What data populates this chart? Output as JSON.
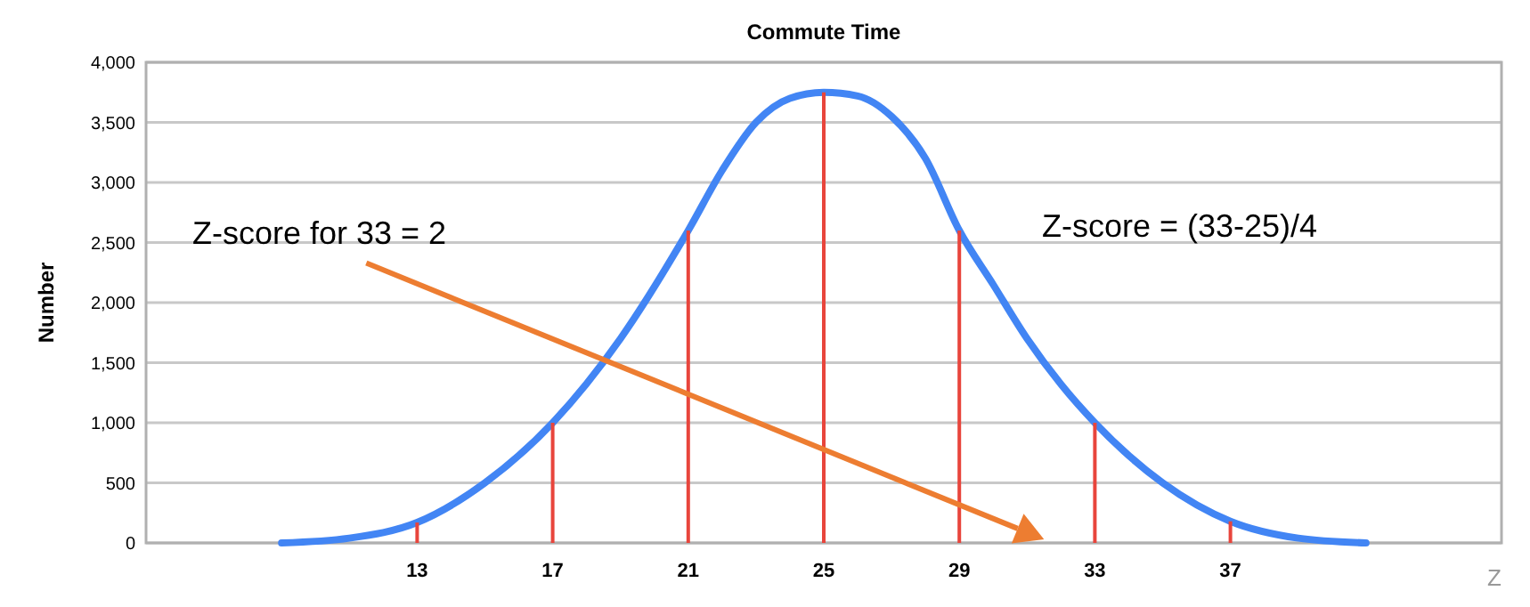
{
  "chart_data": {
    "type": "line",
    "title": "Commute Time",
    "xlabel": "Z",
    "ylabel": "Number",
    "xlim": [
      5,
      45
    ],
    "xticks": [
      13,
      17,
      21,
      25,
      29,
      33,
      37
    ],
    "ylim": [
      0,
      4000
    ],
    "yticks": [
      {
        "value": 0,
        "label": "0"
      },
      {
        "value": 500,
        "label": "500"
      },
      {
        "value": 1000,
        "label": "1,000"
      },
      {
        "value": 1500,
        "label": "1,500"
      },
      {
        "value": 2000,
        "label": "2,000"
      },
      {
        "value": 2500,
        "label": "2,500"
      },
      {
        "value": 3000,
        "label": "3,000"
      },
      {
        "value": 3500,
        "label": "3,500"
      },
      {
        "value": 4000,
        "label": "4,000"
      }
    ],
    "grid": "y",
    "marker": "none",
    "line_style": "solid",
    "annotations": [
      "Z-score for 33 = 2",
      "Z-score = (33-25)/4"
    ],
    "series": [
      {
        "color": "#4285f4",
        "x": [
          9,
          11,
          13,
          15,
          17,
          19,
          21,
          22,
          23,
          24,
          25,
          26,
          27,
          28,
          29,
          30,
          31,
          32,
          33,
          35,
          37,
          39,
          41
        ],
        "values": [
          0,
          40,
          170,
          500,
          1000,
          1700,
          2600,
          3100,
          3500,
          3700,
          3750,
          3720,
          3550,
          3200,
          2600,
          2150,
          1700,
          1320,
          1000,
          500,
          180,
          40,
          0
        ]
      },
      {
        "type": "bar",
        "color": "#e8453c",
        "x": [
          13,
          17,
          21,
          25,
          29,
          33,
          37
        ],
        "values": [
          170,
          1000,
          2600,
          3750,
          2600,
          1000,
          180
        ]
      }
    ]
  }
}
